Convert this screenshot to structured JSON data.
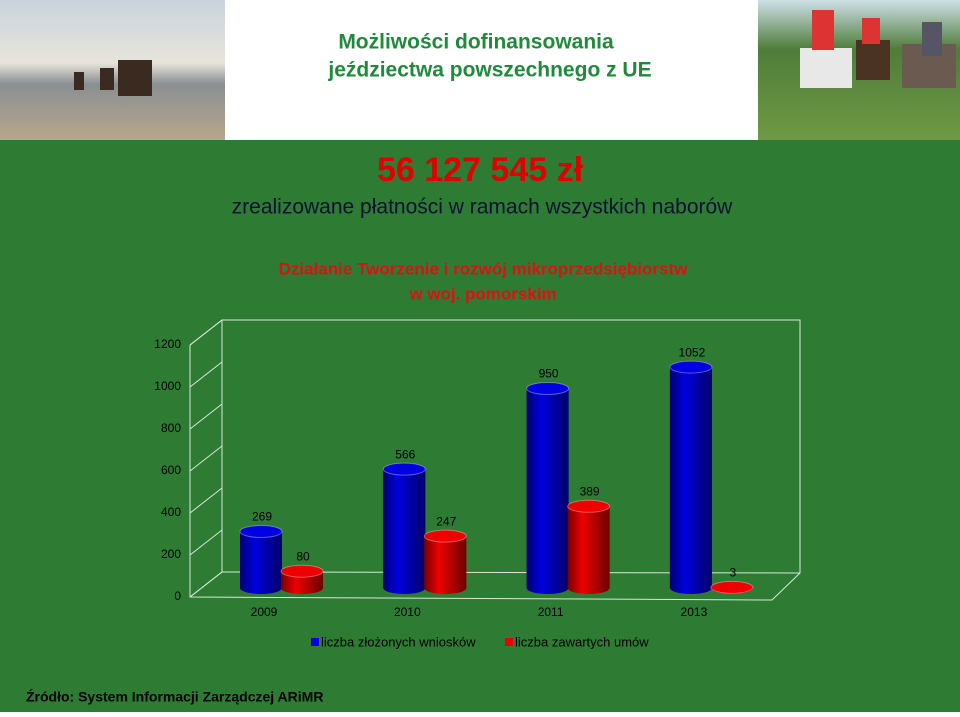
{
  "header": {
    "title_line1": "Możliwości dofinansowania",
    "title_line2": "jeździectwa powszechnego z UE"
  },
  "amount": "56 127 545 zł",
  "amount_caption": "zrealizowane płatności w ramach wszystkich naborów",
  "chart_data": {
    "type": "bar3d",
    "title": [
      "Działanie Tworzenie i rozwój mikroprzedsiębiorstw",
      "w woj. pomorskim"
    ],
    "categories": [
      "2009",
      "2010",
      "2011",
      "2013"
    ],
    "series": [
      {
        "name": "liczba złożonych wniosków",
        "color": "#0000e0",
        "values": [
          269,
          566,
          950,
          1052
        ]
      },
      {
        "name": "liczba zawartych umów",
        "color": "#ee0000",
        "values": [
          80,
          247,
          389,
          3
        ]
      }
    ],
    "ylim": [
      0,
      1200
    ],
    "yticks": [
      0,
      200,
      400,
      600,
      800,
      1000,
      1200
    ],
    "grid": true
  },
  "source": "Źródło: System Informacji Zarządczej ARiMR"
}
